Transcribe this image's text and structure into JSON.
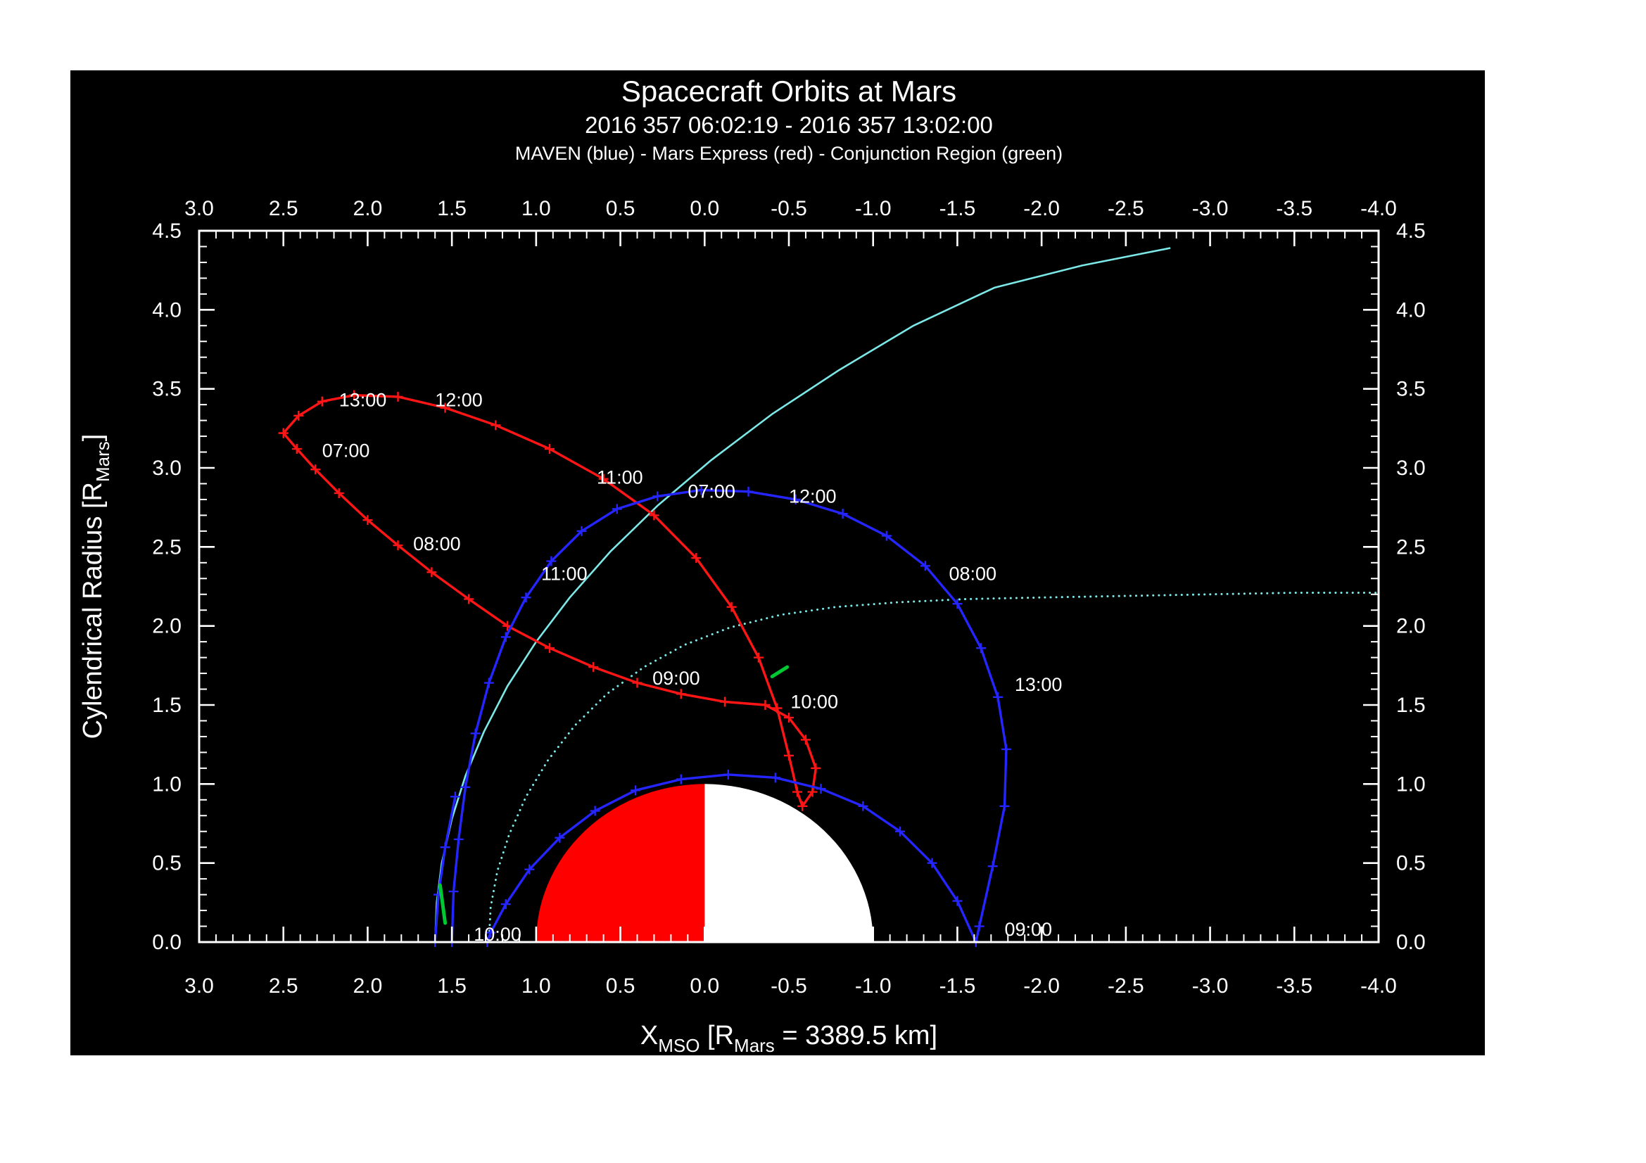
{
  "window": {
    "background": "#ffffff",
    "plot_background": "#000000"
  },
  "chart_data": {
    "type": "line",
    "title": "Spacecraft Orbits at Mars",
    "subtitle": "2016 357 06:02:19 - 2016 357 13:02:00",
    "legend_line": "MAVEN (blue) - Mars Express (red) - Conjunction Region (green)",
    "colors": {
      "maven": "#2525ff",
      "mex": "#ff1515",
      "boundary": "#7de8e8",
      "conjunction": "#00c832",
      "axis": "#ffffff",
      "mars_dayside": "#ff0000",
      "mars_nightside": "#ffffff"
    },
    "axes": {
      "x": {
        "min": 3.0,
        "max": -4.0,
        "ticks": [
          3.0,
          2.5,
          2.0,
          1.5,
          1.0,
          0.5,
          0.0,
          -0.5,
          -1.0,
          -1.5,
          -2.0,
          -2.5,
          -3.0,
          -3.5,
          -4.0
        ],
        "tick_labels": [
          "3.0",
          "2.5",
          "2.0",
          "1.5",
          "1.0",
          "0.5",
          "0.0",
          "-0.5",
          "-1.0",
          "-1.5",
          "-2.0",
          "-2.5",
          "-3.0",
          "-3.5",
          "-4.0"
        ],
        "minor_step": 0.1,
        "label_parts": [
          {
            "t": "X"
          },
          {
            "t": "MSO",
            "sub": true
          },
          {
            "t": " [R"
          },
          {
            "t": "Mars",
            "sub": true
          },
          {
            "t": " = 3389.5 km]"
          }
        ]
      },
      "y": {
        "min": 0.0,
        "max": 4.5,
        "ticks": [
          0.0,
          0.5,
          1.0,
          1.5,
          2.0,
          2.5,
          3.0,
          3.5,
          4.0,
          4.5
        ],
        "tick_labels": [
          "0.0",
          "0.5",
          "1.0",
          "1.5",
          "2.0",
          "2.5",
          "3.0",
          "3.5",
          "4.0",
          "4.5"
        ],
        "minor_step": 0.1,
        "label_parts": [
          {
            "t": "Cylendrical Radius [R"
          },
          {
            "t": "Mars",
            "sub": true
          },
          {
            "t": "]"
          }
        ]
      }
    },
    "mars": {
      "radius": 1.0,
      "dayside_color": "#ff0000",
      "nightside_color": "#ffffff"
    },
    "series": [
      {
        "name": "bow-shock",
        "color": "#7de8e8",
        "width": 2.6,
        "style": "solid",
        "markers": false,
        "points": [
          [
            1.6,
            0.0
          ],
          [
            1.59,
            0.25
          ],
          [
            1.56,
            0.5
          ],
          [
            1.5,
            0.78
          ],
          [
            1.42,
            1.05
          ],
          [
            1.31,
            1.33
          ],
          [
            1.17,
            1.62
          ],
          [
            1.0,
            1.9
          ],
          [
            0.8,
            2.18
          ],
          [
            0.56,
            2.47
          ],
          [
            0.28,
            2.76
          ],
          [
            -0.04,
            3.05
          ],
          [
            -0.4,
            3.34
          ],
          [
            -0.8,
            3.62
          ],
          [
            -1.24,
            3.9
          ],
          [
            -1.72,
            4.14
          ],
          [
            -2.24,
            4.28
          ],
          [
            -2.76,
            4.39
          ]
        ]
      },
      {
        "name": "mpb-boundary",
        "color": "#7de8e8",
        "width": 3,
        "style": "dotted",
        "markers": false,
        "points": [
          [
            1.28,
            0.0
          ],
          [
            1.27,
            0.22
          ],
          [
            1.23,
            0.45
          ],
          [
            1.16,
            0.68
          ],
          [
            1.06,
            0.92
          ],
          [
            0.93,
            1.15
          ],
          [
            0.77,
            1.37
          ],
          [
            0.58,
            1.57
          ],
          [
            0.36,
            1.74
          ],
          [
            0.12,
            1.88
          ],
          [
            -0.15,
            1.99
          ],
          [
            -0.45,
            2.07
          ],
          [
            -0.78,
            2.12
          ],
          [
            -1.15,
            2.15
          ],
          [
            -1.55,
            2.17
          ],
          [
            -2.0,
            2.18
          ],
          [
            -2.5,
            2.19
          ],
          [
            -3.0,
            2.2
          ],
          [
            -3.5,
            2.21
          ],
          [
            -4.0,
            2.21
          ]
        ]
      },
      {
        "name": "mex-orbit",
        "color": "#ff1515",
        "width": 3.4,
        "style": "solid",
        "markers": true,
        "points": [
          [
            2.5,
            3.22
          ],
          [
            2.42,
            3.12
          ],
          [
            2.31,
            2.99
          ],
          [
            2.17,
            2.84
          ],
          [
            2.0,
            2.67
          ],
          [
            1.82,
            2.51
          ],
          [
            1.62,
            2.34
          ],
          [
            1.4,
            2.17
          ],
          [
            1.17,
            2.0
          ],
          [
            0.92,
            1.86
          ],
          [
            0.66,
            1.74
          ],
          [
            0.4,
            1.64
          ],
          [
            0.14,
            1.57
          ],
          [
            -0.12,
            1.52
          ],
          [
            -0.36,
            1.5
          ],
          [
            -0.5,
            1.42
          ],
          [
            -0.6,
            1.28
          ],
          [
            -0.66,
            1.1
          ],
          [
            -0.64,
            0.95
          ],
          [
            -0.58,
            0.86
          ],
          [
            -0.55,
            0.95
          ],
          [
            -0.5,
            1.18
          ],
          [
            -0.43,
            1.48
          ],
          [
            -0.32,
            1.8
          ],
          [
            -0.16,
            2.12
          ],
          [
            0.05,
            2.43
          ],
          [
            0.3,
            2.7
          ],
          [
            0.6,
            2.93
          ],
          [
            0.92,
            3.12
          ],
          [
            1.24,
            3.27
          ],
          [
            1.54,
            3.38
          ],
          [
            1.82,
            3.45
          ],
          [
            2.08,
            3.46
          ],
          [
            2.27,
            3.42
          ],
          [
            2.41,
            3.33
          ],
          [
            2.5,
            3.22
          ]
        ]
      },
      {
        "name": "maven-orbit-outer",
        "color": "#2525ff",
        "width": 3.4,
        "style": "solid",
        "markers": true,
        "points": [
          [
            1.5,
            0.0
          ],
          [
            1.49,
            0.32
          ],
          [
            1.46,
            0.65
          ],
          [
            1.42,
            0.98
          ],
          [
            1.36,
            1.32
          ],
          [
            1.28,
            1.64
          ],
          [
            1.18,
            1.93
          ],
          [
            1.06,
            2.18
          ],
          [
            0.91,
            2.41
          ],
          [
            0.73,
            2.6
          ],
          [
            0.52,
            2.74
          ],
          [
            0.28,
            2.82
          ],
          [
            0.02,
            2.86
          ],
          [
            -0.26,
            2.85
          ],
          [
            -0.54,
            2.8
          ],
          [
            -0.82,
            2.71
          ],
          [
            -1.08,
            2.57
          ],
          [
            -1.31,
            2.38
          ],
          [
            -1.5,
            2.14
          ],
          [
            -1.64,
            1.86
          ],
          [
            -1.74,
            1.55
          ],
          [
            -1.79,
            1.22
          ],
          [
            -1.78,
            0.86
          ],
          [
            -1.71,
            0.48
          ],
          [
            -1.63,
            0.1
          ],
          [
            -1.61,
            0.0
          ]
        ]
      },
      {
        "name": "maven-orbit-periapsis",
        "color": "#2525ff",
        "width": 3.4,
        "style": "solid",
        "markers": true,
        "points": [
          [
            -1.61,
            0.0
          ],
          [
            -1.5,
            0.26
          ],
          [
            -1.35,
            0.5
          ],
          [
            -1.16,
            0.7
          ],
          [
            -0.94,
            0.86
          ],
          [
            -0.69,
            0.97
          ],
          [
            -0.42,
            1.04
          ],
          [
            -0.14,
            1.06
          ],
          [
            0.14,
            1.03
          ],
          [
            0.41,
            0.96
          ],
          [
            0.65,
            0.83
          ],
          [
            0.86,
            0.66
          ],
          [
            1.04,
            0.46
          ],
          [
            1.18,
            0.24
          ],
          [
            1.27,
            0.06
          ],
          [
            1.29,
            0.0
          ]
        ]
      },
      {
        "name": "maven-orbit-second-pass",
        "color": "#2525ff",
        "width": 3.4,
        "style": "solid",
        "markers": true,
        "points": [
          [
            1.6,
            0.0
          ],
          [
            1.58,
            0.3
          ],
          [
            1.54,
            0.6
          ],
          [
            1.48,
            0.92
          ]
        ]
      },
      {
        "name": "conjunction-region-1",
        "color": "#00c832",
        "width": 5,
        "style": "solid",
        "markers": false,
        "points": [
          [
            1.54,
            0.12
          ],
          [
            1.57,
            0.36
          ]
        ]
      },
      {
        "name": "conjunction-region-2",
        "color": "#00c832",
        "width": 5,
        "style": "solid",
        "markers": false,
        "points": [
          [
            -0.4,
            1.68
          ],
          [
            -0.49,
            1.74
          ]
        ]
      }
    ],
    "time_labels": {
      "maven": {
        "color": "#2525ff",
        "items": [
          {
            "text": "07:00",
            "x": 0.1,
            "r": 2.85
          },
          {
            "text": "12:00",
            "x": -0.5,
            "r": 2.82
          },
          {
            "text": "11:00",
            "x": 0.97,
            "r": 2.33
          },
          {
            "text": "08:00",
            "x": -1.45,
            "r": 2.33
          },
          {
            "text": "13:00",
            "x": -1.84,
            "r": 1.63
          },
          {
            "text": "09:00",
            "x": -1.78,
            "r": 0.08
          },
          {
            "text": "10:00",
            "x": 1.37,
            "r": 0.05
          }
        ]
      },
      "mex": {
        "color": "#ff1515",
        "items": [
          {
            "text": "13:00",
            "x": 2.17,
            "r": 3.43
          },
          {
            "text": "12:00",
            "x": 1.6,
            "r": 3.43
          },
          {
            "text": "07:00",
            "x": 2.27,
            "r": 3.11
          },
          {
            "text": "08:00",
            "x": 1.73,
            "r": 2.52
          },
          {
            "text": "11:00",
            "x": 0.64,
            "r": 2.94
          },
          {
            "text": "09:00",
            "x": 0.31,
            "r": 1.67
          },
          {
            "text": "10:00",
            "x": -0.51,
            "r": 1.52
          }
        ]
      }
    }
  }
}
